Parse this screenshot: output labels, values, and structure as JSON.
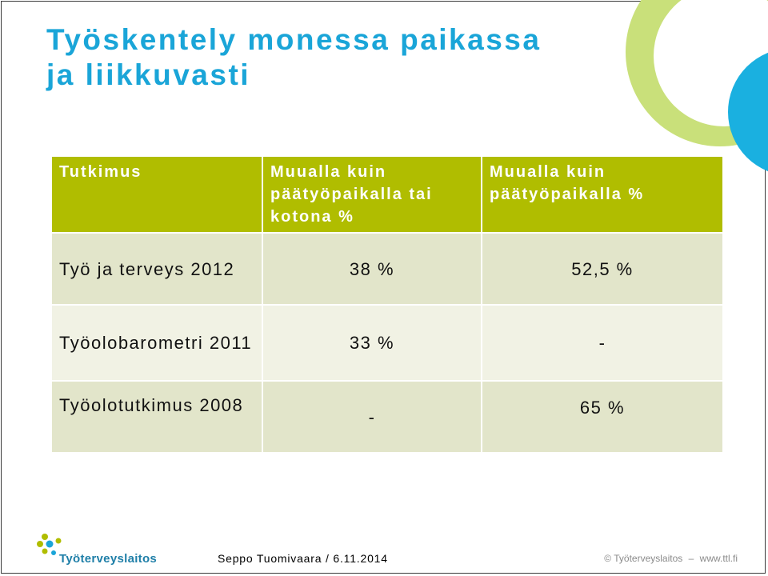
{
  "slide": {
    "title_lines": [
      "Työskentely monessa paikassa",
      "ja liikkuvasti"
    ]
  },
  "table": {
    "headers": [
      "Tutkimus",
      "Muualla kuin päätyöpaikalla tai kotona %",
      "Muualla  kuin päätyöpaikalla %"
    ],
    "rows": [
      [
        "Työ ja terveys 2012",
        "38 %",
        "52,5 %"
      ],
      [
        "Työolobarometri 2011",
        "33 %",
        "-"
      ],
      [
        "Työolotutkimus 2008",
        "-",
        "65 %"
      ]
    ]
  },
  "footer": {
    "logo_text": "Työterveyslaitos",
    "presenter": "Seppo Tuomivaara / 6.11.2014",
    "copyright": "© Työterveyslaitos",
    "separator": "–",
    "website": "www.ttl.fi"
  },
  "colors": {
    "title": "#1aa5d8",
    "header_bg": "#b0bd00",
    "row_dark": "#e2e5ca",
    "row_light": "#f1f2e4",
    "deco_green": "#c9e07a",
    "deco_blue": "#1ab0e0"
  }
}
